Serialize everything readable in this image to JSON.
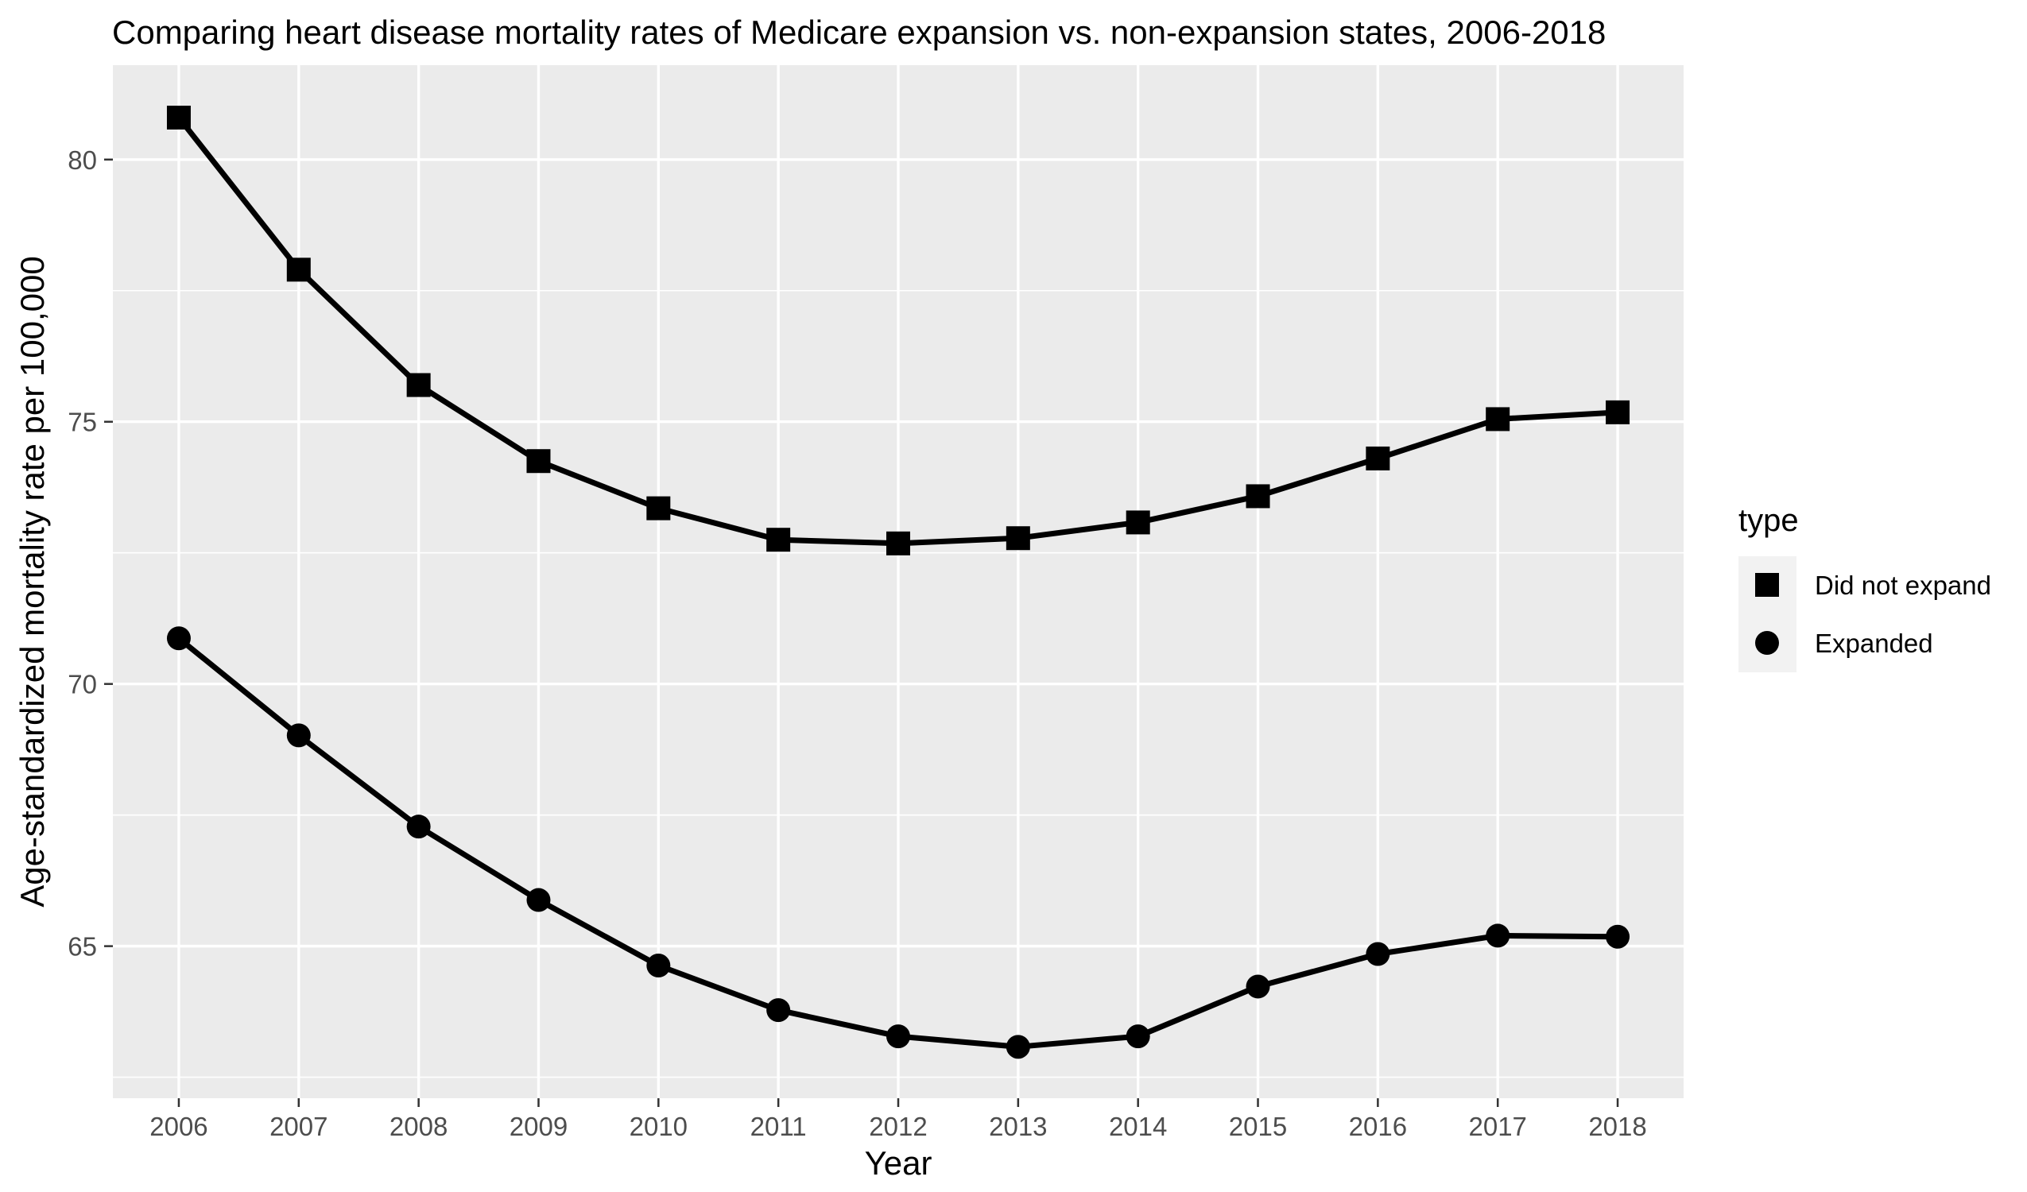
{
  "chart_data": {
    "type": "line",
    "title": "Comparing heart disease mortality rates of Medicare expansion vs. non-expansion states, 2006-2018",
    "xlabel": "Year",
    "ylabel": "Age-standardized mortality rate per 100,000",
    "x": [
      2006,
      2007,
      2008,
      2009,
      2010,
      2011,
      2012,
      2013,
      2014,
      2015,
      2016,
      2017,
      2018
    ],
    "xlim": [
      2005.45,
      2018.55
    ],
    "ylim": [
      62.1,
      81.8
    ],
    "y_ticks": [
      65,
      70,
      75,
      80
    ],
    "grid": true,
    "legend": {
      "title": "type",
      "position": "right"
    },
    "series": [
      {
        "name": "Did not expand",
        "marker": "square",
        "color": "#000000",
        "values": [
          80.8,
          77.9,
          75.7,
          74.25,
          73.35,
          72.75,
          72.68,
          72.78,
          73.08,
          73.58,
          74.3,
          75.05,
          75.18
        ]
      },
      {
        "name": "Expanded",
        "marker": "circle",
        "color": "#000000",
        "values": [
          70.87,
          69.02,
          67.28,
          65.88,
          64.63,
          63.78,
          63.28,
          63.08,
          63.28,
          64.23,
          64.85,
          65.2,
          65.18
        ]
      }
    ]
  },
  "colors": {
    "panel_background": "#ebebeb",
    "grid_major": "#ffffff",
    "axis_text": "#4d4d4d",
    "series": "#000000"
  }
}
